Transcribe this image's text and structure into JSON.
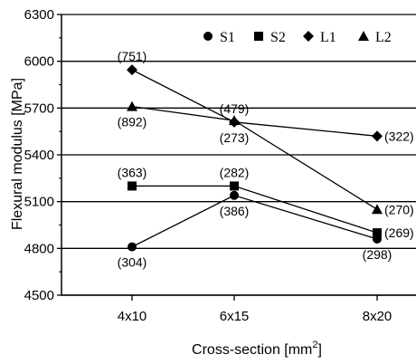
{
  "chart_data": {
    "type": "line",
    "title": "",
    "xlabel": "Cross-section [mm",
    "xlabel_sup": "2",
    "xlabel_end": "]",
    "ylabel": "Flexural modulus [MPa]",
    "categories": [
      "4x10",
      "6x15",
      "8x20"
    ],
    "ylim": [
      4500,
      6300
    ],
    "yticks": [
      4500,
      4800,
      5100,
      5400,
      5700,
      6000,
      6300
    ],
    "grid": "horizontal at major ticks",
    "legend_position": "top-right, horizontal",
    "series": [
      {
        "name": "S1",
        "marker": "circle",
        "values": [
          4810,
          5140,
          4860
        ]
      },
      {
        "name": "S2",
        "marker": "square",
        "values": [
          5200,
          5200,
          4900
        ]
      },
      {
        "name": "L1",
        "marker": "diamond",
        "values": [
          5945,
          5610,
          5520
        ]
      },
      {
        "name": "L2",
        "marker": "triangle",
        "values": [
          5710,
          5620,
          5050
        ]
      }
    ],
    "annotations": [
      {
        "text": "(751)",
        "series": "L1",
        "index": 0,
        "pos": "above"
      },
      {
        "text": "(892)",
        "series": "L2",
        "index": 0,
        "pos": "below"
      },
      {
        "text": "(363)",
        "series": "S2",
        "index": 0,
        "pos": "above"
      },
      {
        "text": "(304)",
        "series": "S1",
        "index": 0,
        "pos": "below"
      },
      {
        "text": "(479)",
        "series": "L1",
        "index": 1,
        "pos": "above"
      },
      {
        "text": "(273)",
        "series": "L1",
        "index": 1,
        "pos": "below"
      },
      {
        "text": "(282)",
        "series": "S2",
        "index": 1,
        "pos": "above"
      },
      {
        "text": "(386)",
        "series": "S1",
        "index": 1,
        "pos": "below"
      },
      {
        "text": "(322)",
        "series": "L1",
        "index": 2,
        "pos": "right"
      },
      {
        "text": "(270)",
        "series": "L2",
        "index": 2,
        "pos": "right"
      },
      {
        "text": "(269)",
        "series": "S2",
        "index": 2,
        "pos": "right"
      },
      {
        "text": "(298)",
        "series": "S1",
        "index": 2,
        "pos": "below"
      }
    ]
  }
}
